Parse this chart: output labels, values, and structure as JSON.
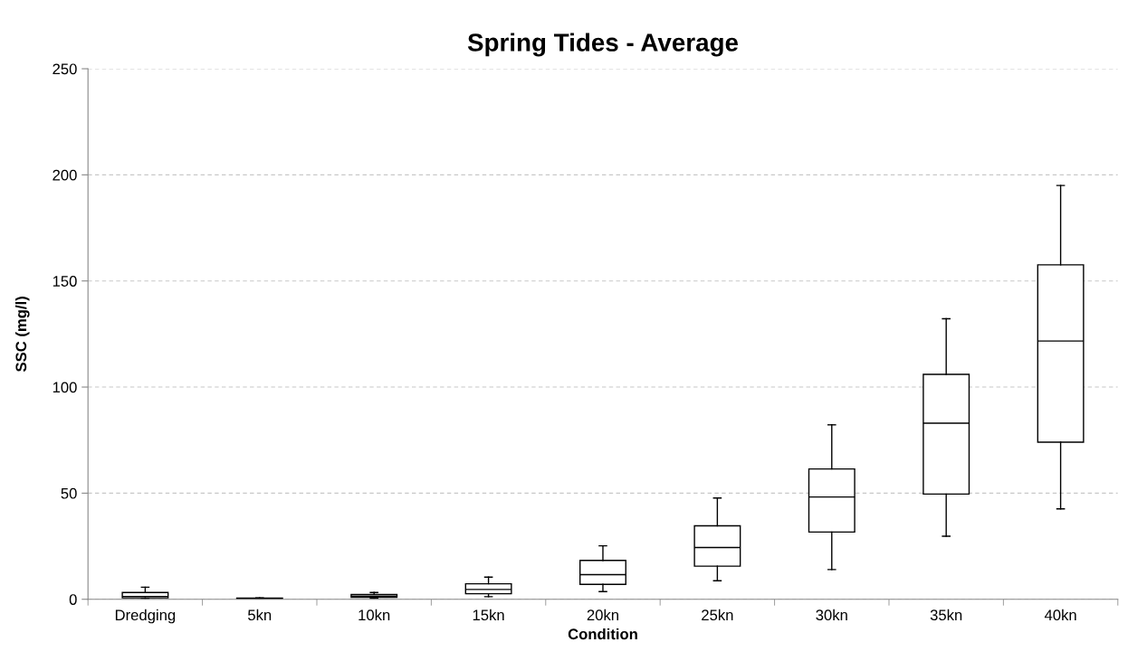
{
  "chart_data": {
    "type": "box",
    "title": "Spring Tides - Average",
    "xlabel": "Condition",
    "ylabel": "SSC (mg/l)",
    "categories": [
      "Dredging",
      "5kn",
      "10kn",
      "15kn",
      "20kn",
      "25kn",
      "30kn",
      "35kn",
      "40kn"
    ],
    "boxes": [
      {
        "low": 0.3,
        "q1": 0.7,
        "median": 1.3,
        "q3": 3.2,
        "high": 5.7
      },
      {
        "low": 0.1,
        "q1": 0.2,
        "median": 0.3,
        "q3": 0.5,
        "high": 0.7
      },
      {
        "low": 0.4,
        "q1": 0.9,
        "median": 1.5,
        "q3": 2.3,
        "high": 3.2
      },
      {
        "low": 1.2,
        "q1": 2.6,
        "median": 4.6,
        "q3": 7.3,
        "high": 10.4
      },
      {
        "low": 3.6,
        "q1": 7.0,
        "median": 11.6,
        "q3": 18.3,
        "high": 25.2
      },
      {
        "low": 8.7,
        "q1": 15.6,
        "median": 24.4,
        "q3": 34.6,
        "high": 47.7
      },
      {
        "low": 14.0,
        "q1": 31.7,
        "median": 48.2,
        "q3": 61.4,
        "high": 82.2
      },
      {
        "low": 29.7,
        "q1": 49.6,
        "median": 83.0,
        "q3": 106.0,
        "high": 132.2
      },
      {
        "low": 42.6,
        "q1": 74.0,
        "median": 121.7,
        "q3": 157.6,
        "high": 195.0
      }
    ],
    "ylim": [
      0,
      250
    ],
    "yticks": [
      0,
      50,
      100,
      150,
      200,
      250
    ],
    "grid": "y",
    "color": "#000000"
  }
}
